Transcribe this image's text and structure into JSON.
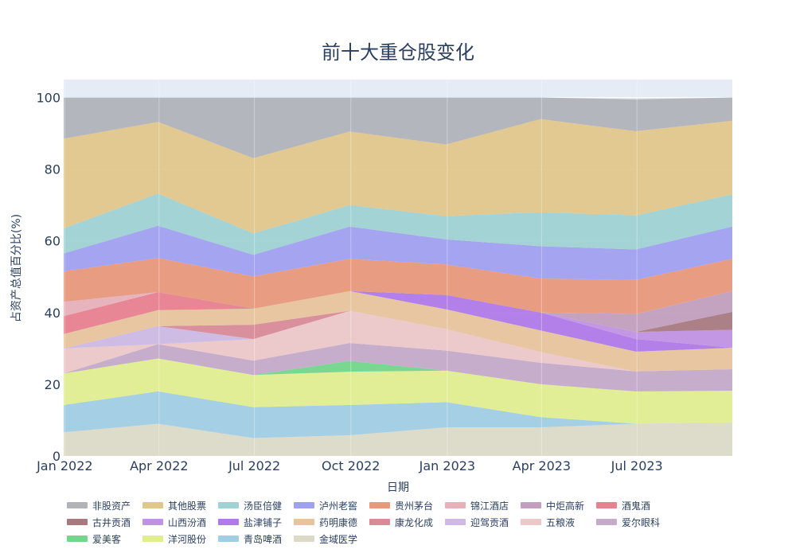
{
  "chart_data": {
    "type": "area",
    "stacked": true,
    "title": "前十大重仓股变化",
    "xlabel": "日期",
    "ylabel": "占资产总值百分比(%)",
    "ylim": [
      0,
      105
    ],
    "yticks": [
      0,
      20,
      40,
      60,
      80,
      100
    ],
    "xtick_labels": [
      "Jan 2022",
      "Apr 2022",
      "Jul 2022",
      "Oct 2022",
      "Jan 2023",
      "Apr 2023",
      "Jul 2023"
    ],
    "x": [
      "2021-12-31",
      "2022-03-31",
      "2022-06-30",
      "2022-09-30",
      "2022-12-31",
      "2023-03-31",
      "2023-06-30",
      "2023-09-30"
    ],
    "grid": true,
    "legend_position": "bottom",
    "series": [
      {
        "name": "金域医学",
        "color": "#dcdac6",
        "values": [
          6.6,
          9.0,
          5.0,
          5.8,
          8.0,
          8.0,
          9.0,
          9.4
        ]
      },
      {
        "name": "青岛啤酒",
        "color": "#a1cee3",
        "values": [
          7.6,
          9.0,
          8.6,
          8.4,
          7.0,
          2.8,
          0,
          0
        ]
      },
      {
        "name": "洋河股份",
        "color": "#e0ee8f",
        "values": [
          8.8,
          9.2,
          9.0,
          9.3,
          8.8,
          9.2,
          9.0,
          8.8
        ]
      },
      {
        "name": "爱美客",
        "color": "#74d68c",
        "values": [
          0,
          0,
          0,
          3.0,
          0,
          0,
          0,
          0
        ]
      },
      {
        "name": "爱尔眼科",
        "color": "#c5aac9",
        "values": [
          0,
          4.0,
          4.0,
          5.0,
          5.6,
          6.0,
          5.6,
          6.0
        ]
      },
      {
        "name": "五粮液",
        "color": "#ecc8c8",
        "values": [
          7.0,
          0,
          6.0,
          9.0,
          6.0,
          3.0,
          0,
          0
        ]
      },
      {
        "name": "迎驾贡酒",
        "color": "#cdb9e3",
        "values": [
          0,
          5.0,
          0,
          0,
          0,
          0,
          0,
          0
        ]
      },
      {
        "name": "康龙化成",
        "color": "#d98a97",
        "values": [
          0,
          0,
          4.0,
          0,
          0,
          0,
          0,
          0
        ]
      },
      {
        "name": "药明康德",
        "color": "#e7c49c",
        "values": [
          4.0,
          4.5,
          4.5,
          5.5,
          5.5,
          6.0,
          5.5,
          6.0
        ]
      },
      {
        "name": "盐津铺子",
        "color": "#b07ae8",
        "values": [
          0,
          0,
          0,
          0,
          4.0,
          5.0,
          3.5,
          0
        ]
      },
      {
        "name": "山西汾酒",
        "color": "#c192e1",
        "values": [
          0,
          0,
          0,
          0,
          0,
          0,
          2.0,
          5.0
        ]
      },
      {
        "name": "古井贡酒",
        "color": "#a87a80",
        "values": [
          0,
          0,
          0,
          0,
          0,
          0,
          0,
          5.0
        ]
      },
      {
        "name": "中炬高新",
        "color": "#c29fbe",
        "values": [
          0,
          0,
          0,
          0,
          0,
          0,
          5.0,
          5.8
        ]
      },
      {
        "name": "酒鬼酒",
        "color": "#e8818f",
        "values": [
          5.0,
          5.0,
          0,
          0,
          0,
          0,
          0,
          0
        ]
      },
      {
        "name": "锦江酒店",
        "color": "#e7b1ba",
        "values": [
          4.0,
          0,
          0,
          0,
          0,
          0,
          0,
          0
        ]
      },
      {
        "name": "贵州茅台",
        "color": "#e8997c",
        "values": [
          8.5,
          9.5,
          9.0,
          9.0,
          8.5,
          9.5,
          9.5,
          9.0
        ]
      },
      {
        "name": "泸州老窖",
        "color": "#a0a0f0",
        "values": [
          5.0,
          9.0,
          6.0,
          9.0,
          7.0,
          9.0,
          8.5,
          9.0
        ]
      },
      {
        "name": "汤臣倍健",
        "color": "#a0d2d3",
        "values": [
          7.0,
          9.0,
          6.0,
          6.0,
          6.5,
          9.5,
          9.5,
          9.0
        ]
      },
      {
        "name": "其他股票",
        "color": "#e2c78b",
        "values": [
          25.0,
          20.0,
          21.0,
          20.5,
          20.0,
          26.0,
          23.5,
          20.5
        ]
      },
      {
        "name": "非股资产",
        "color": "#b1b3b9",
        "values": [
          11.5,
          6.8,
          16.9,
          9.5,
          13.1,
          6.0,
          8.9,
          6.5
        ]
      }
    ],
    "legend_order": [
      "非股资产",
      "其他股票",
      "汤臣倍健",
      "泸州老窖",
      "贵州茅台",
      "锦江酒店",
      "中炬高新",
      "酒鬼酒",
      "古井贡酒",
      "山西汾酒",
      "盐津铺子",
      "药明康德",
      "康龙化成",
      "迎驾贡酒",
      "五粮液",
      "爱尔眼科",
      "爱美客",
      "洋河股份",
      "青岛啤酒",
      "金域医学"
    ]
  }
}
